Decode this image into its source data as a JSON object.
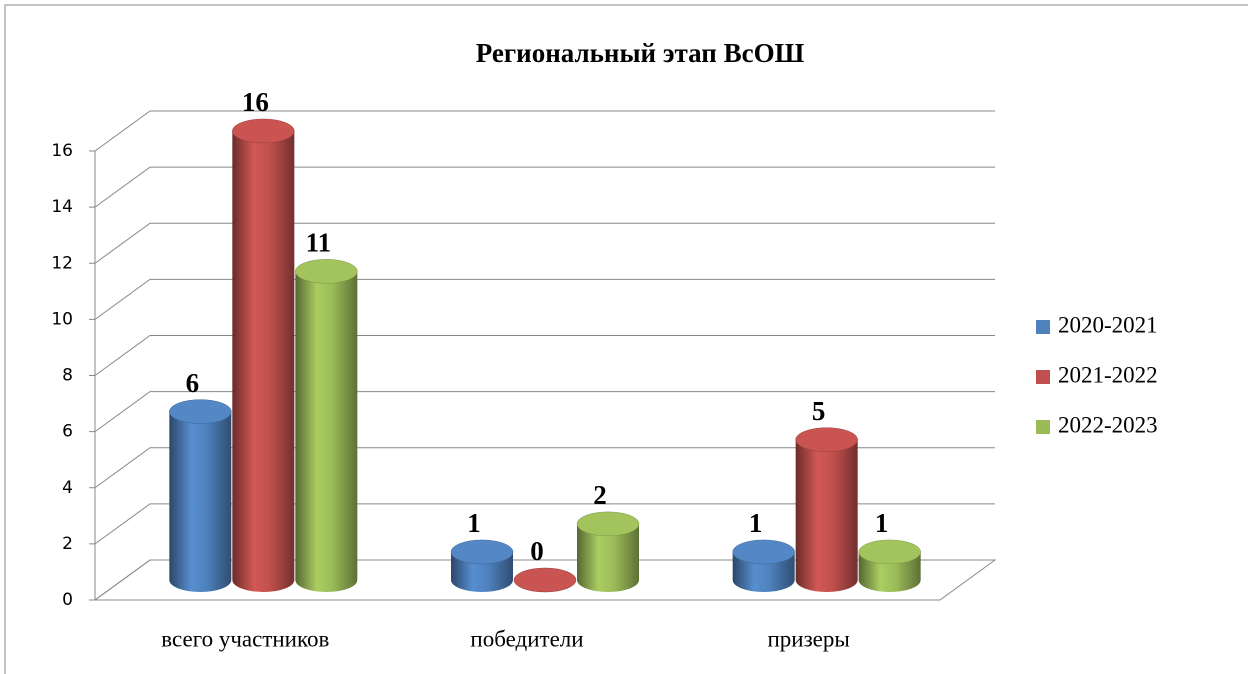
{
  "chart_data": {
    "type": "bar3d",
    "title": "Региональный этап ВсОШ",
    "categories": [
      "всего участников",
      "победители",
      "призеры"
    ],
    "series": [
      {
        "name": "2020-2021",
        "color": "#4f81bd",
        "values": [
          6,
          1,
          1
        ]
      },
      {
        "name": "2021-2022",
        "color": "#c0504d",
        "values": [
          16,
          0,
          5
        ]
      },
      {
        "name": "2022-2023",
        "color": "#9bbb59",
        "values": [
          11,
          2,
          1
        ]
      }
    ],
    "ylim": [
      0,
      16
    ],
    "yticks": [
      0,
      2,
      4,
      6,
      8,
      10,
      12,
      14,
      16
    ],
    "grid": true,
    "legend": "right"
  }
}
